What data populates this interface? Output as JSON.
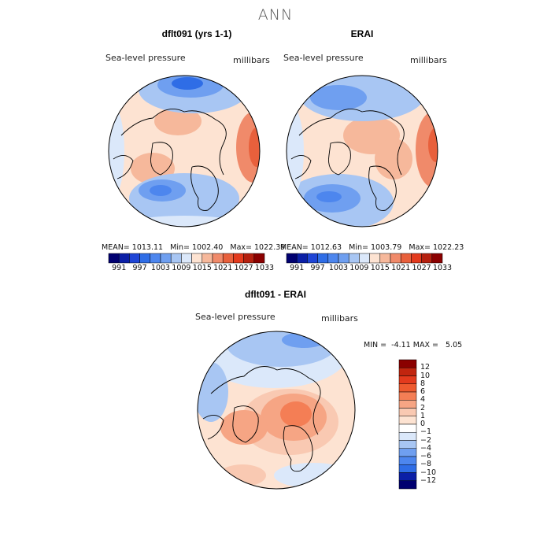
{
  "figure": {
    "title": "ANN",
    "colors": {
      "dark_red": "#8b0000",
      "red": "#e33a1d",
      "light_red": "#f6b89b",
      "peach": "#fde3d2",
      "white": "#ffffff",
      "pale_blue": "#dbe8fa",
      "light_blue": "#a8c6f3",
      "mid_blue": "#6f9ff0",
      "blue": "#2f6de6",
      "dark_blue": "#0b1fa6",
      "navy": "#000070",
      "coast": "#000000"
    }
  },
  "panels": [
    {
      "title": "dflt091 (yrs 1-1)",
      "variable": "Sea-level pressure",
      "units": "millibars",
      "stats": {
        "mean_label": "MEAN=",
        "mean": "1013.11",
        "min_label": "Min=",
        "min": "1002.40",
        "max_label": "Max=",
        "max": "1022.39"
      }
    },
    {
      "title": "ERAI",
      "variable": "Sea-level pressure",
      "units": "millibars",
      "stats": {
        "mean_label": "MEAN=",
        "mean": "1012.63",
        "min_label": "Min=",
        "min": "1003.79",
        "max_label": "Max=",
        "max": "1022.23"
      }
    },
    {
      "title": "dflt091 - ERAI",
      "variable": "Sea-level pressure",
      "units": "millibars",
      "stats": {
        "min_label": "MIN =",
        "min": "-4.11",
        "max_label": "MAX =",
        "max": "5.05"
      }
    }
  ],
  "chart_data": [
    {
      "type": "heatmap",
      "title": "dflt091 (yrs 1-1)",
      "subtitle": "Sea-level pressure",
      "units": "millibars",
      "projection": "polar stereographic (north pole)",
      "summary": {
        "mean": 1013.11,
        "min": 1002.4,
        "max": 1022.39
      },
      "colorbar": {
        "orientation": "horizontal",
        "levels": [
          991,
          994,
          997,
          1000,
          1003,
          1006,
          1009,
          1012,
          1015,
          1018,
          1021,
          1024,
          1027,
          1030,
          1033
        ],
        "tick_labels": [
          "991",
          "997",
          "1003",
          "1009",
          "1015",
          "1021",
          "1027",
          "1033"
        ],
        "colors": [
          "#000070",
          "#0b1fa6",
          "#1f45d6",
          "#2f6de6",
          "#4d86ee",
          "#6f9ff0",
          "#a8c6f3",
          "#dbe8fa",
          "#fde3d2",
          "#f6b89b",
          "#f08a6a",
          "#e8603c",
          "#e33a1d",
          "#b5200f",
          "#8b0000"
        ]
      }
    },
    {
      "type": "heatmap",
      "title": "ERAI",
      "subtitle": "Sea-level pressure",
      "units": "millibars",
      "projection": "polar stereographic (north pole)",
      "summary": {
        "mean": 1012.63,
        "min": 1003.79,
        "max": 1022.23
      },
      "colorbar": {
        "orientation": "horizontal",
        "levels": [
          991,
          994,
          997,
          1000,
          1003,
          1006,
          1009,
          1012,
          1015,
          1018,
          1021,
          1024,
          1027,
          1030,
          1033
        ],
        "tick_labels": [
          "991",
          "997",
          "1003",
          "1009",
          "1015",
          "1021",
          "1027",
          "1033"
        ],
        "colors": [
          "#000070",
          "#0b1fa6",
          "#1f45d6",
          "#2f6de6",
          "#4d86ee",
          "#6f9ff0",
          "#a8c6f3",
          "#dbe8fa",
          "#fde3d2",
          "#f6b89b",
          "#f08a6a",
          "#e8603c",
          "#e33a1d",
          "#b5200f",
          "#8b0000"
        ]
      }
    },
    {
      "type": "heatmap",
      "title": "dflt091 - ERAI",
      "subtitle": "Sea-level pressure",
      "units": "millibars",
      "projection": "polar stereographic (north pole)",
      "summary": {
        "min": -4.11,
        "max": 5.05
      },
      "colorbar": {
        "orientation": "vertical",
        "levels": [
          12,
          10,
          8,
          6,
          4,
          2,
          1,
          0,
          -1,
          -2,
          -4,
          -6,
          -8,
          -10,
          -12
        ],
        "tick_labels": [
          "12",
          "10",
          "8",
          "6",
          "4",
          "2",
          "1",
          "0",
          "−1",
          "−2",
          "−4",
          "−6",
          "−8",
          "−10",
          "−12"
        ],
        "colors": [
          "#8b0000",
          "#c1250f",
          "#e33a1d",
          "#ee5a2f",
          "#f47e55",
          "#f6a584",
          "#f9c9b2",
          "#fde3d2",
          "#ffffff",
          "#dbe8fa",
          "#a8c6f3",
          "#6f9ff0",
          "#4d86ee",
          "#2f6de6",
          "#0b1fa6",
          "#000070"
        ]
      }
    }
  ]
}
